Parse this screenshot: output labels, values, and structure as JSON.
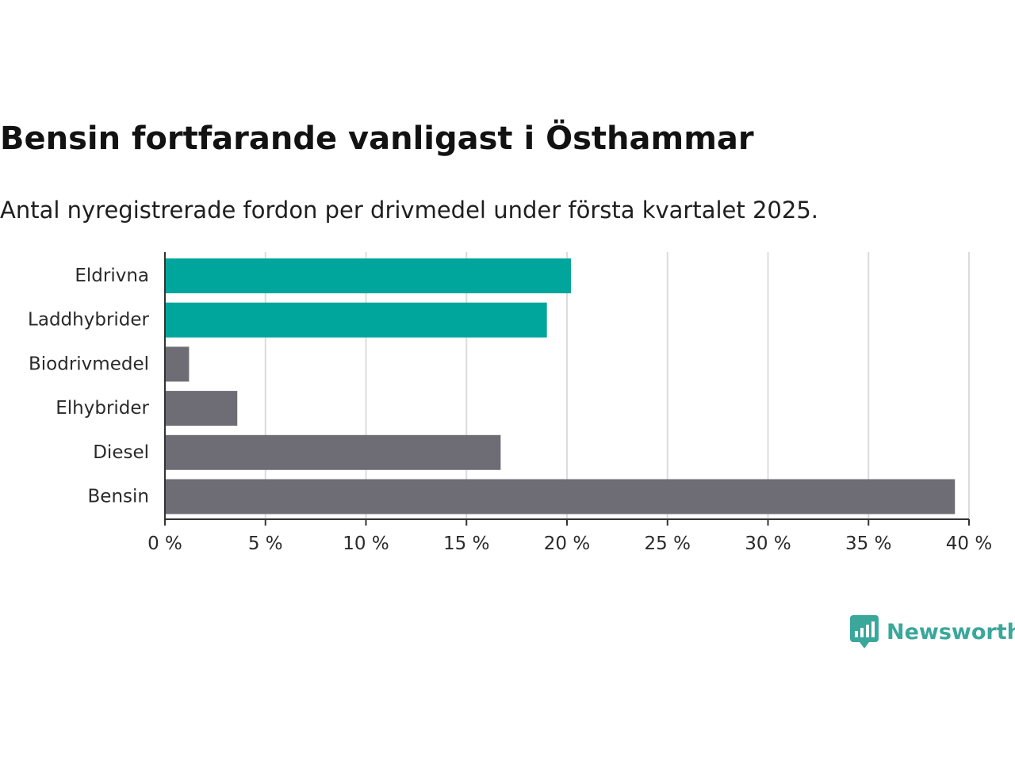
{
  "title": "Bensin fortfarande vanligast i Östhammar",
  "subtitle": "Antal nyregistrerade fordon per drivmedel under första kvartalet 2025.",
  "brand": {
    "name": "Newsworthy",
    "icon": "newsworthy-logo-icon",
    "color": "#3aa79b"
  },
  "chart_data": {
    "type": "bar",
    "orientation": "horizontal",
    "categories": [
      "Eldrivna",
      "Laddhybrider",
      "Biodrivmedel",
      "Elhybrider",
      "Diesel",
      "Bensin"
    ],
    "values": [
      20.2,
      19.0,
      1.2,
      3.6,
      16.7,
      39.3
    ],
    "colors": [
      "#00a59b",
      "#00a59b",
      "#6e6d75",
      "#6e6d75",
      "#6e6d75",
      "#6e6d75"
    ],
    "xlim": [
      0,
      40
    ],
    "xticks": [
      0,
      5,
      10,
      15,
      20,
      25,
      30,
      35,
      40
    ],
    "xtick_labels": [
      "0 %",
      "5 %",
      "10 %",
      "15 %",
      "20 %",
      "25 %",
      "30 %",
      "35 %",
      "40 %"
    ],
    "grid": "vertical",
    "xlabel": "",
    "ylabel": ""
  }
}
